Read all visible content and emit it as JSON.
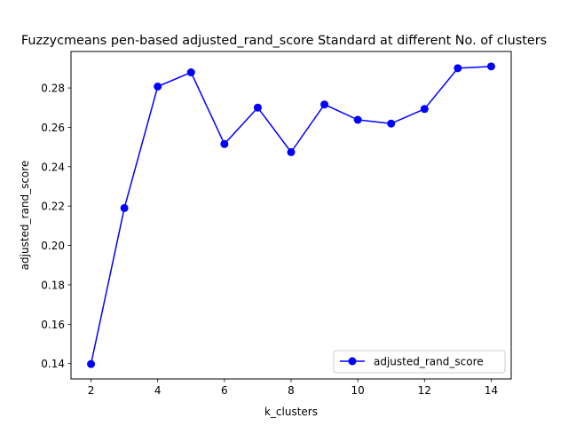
{
  "chart_data": {
    "type": "line",
    "title": "Fuzzycmeans pen-based adjusted_rand_score Standard at different No. of clusters",
    "xlabel": "k_clusters",
    "ylabel": "adjusted_rand_score",
    "x": [
      2,
      3,
      4,
      5,
      6,
      7,
      8,
      9,
      10,
      11,
      12,
      13,
      14
    ],
    "series": [
      {
        "name": "adjusted_rand_score",
        "values": [
          0.1398,
          0.219,
          0.2807,
          0.2879,
          0.2515,
          0.27,
          0.2474,
          0.2716,
          0.2638,
          0.2619,
          0.2693,
          0.29,
          0.2909
        ],
        "color": "#0000ff",
        "marker": "circle"
      }
    ],
    "xlim": [
      1.4,
      14.6
    ],
    "ylim": [
      0.1322,
      0.2985
    ],
    "xticks": [
      2,
      4,
      6,
      8,
      10,
      12,
      14
    ],
    "yticks": [
      0.14,
      0.16,
      0.18,
      0.2,
      0.22,
      0.24,
      0.26,
      0.28
    ],
    "ytick_labels": [
      "0.14",
      "0.16",
      "0.18",
      "0.20",
      "0.22",
      "0.24",
      "0.26",
      "0.28"
    ],
    "grid": false,
    "legend_position": "lower right"
  }
}
